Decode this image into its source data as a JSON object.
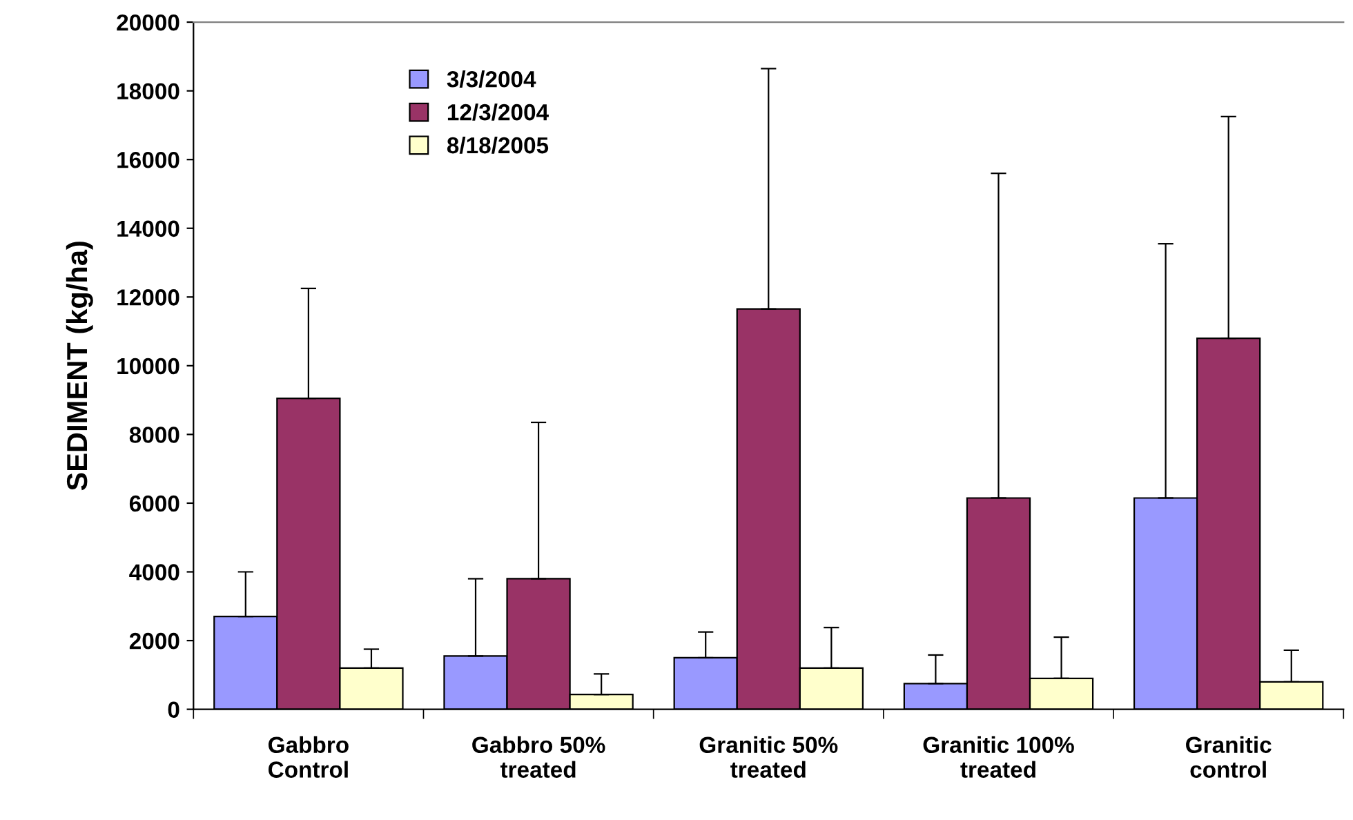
{
  "chart_data": {
    "type": "bar",
    "ylabel": "SEDIMENT (kg/ha)",
    "categories": [
      "Gabbro\nControl",
      "Gabbro 50%\ntreated",
      "Granitic 50%\ntreated",
      "Granitic 100%\ntreated",
      "Granitic\ncontrol"
    ],
    "series": [
      {
        "name": "3/3/2004",
        "color": "#9999ff",
        "values": [
          2700,
          1550,
          1500,
          750,
          6150
        ],
        "errors": [
          [
            2700,
            4000
          ],
          [
            1550,
            3800
          ],
          [
            1500,
            2250
          ],
          [
            750,
            1580
          ],
          [
            6150,
            13550
          ]
        ]
      },
      {
        "name": "12/3/2004",
        "color": "#993366",
        "values": [
          9050,
          3800,
          11650,
          6150,
          10800
        ],
        "errors": [
          [
            9050,
            12250
          ],
          [
            3800,
            8350
          ],
          [
            11650,
            18650
          ],
          [
            6150,
            15600
          ],
          [
            10800,
            17250
          ]
        ]
      },
      {
        "name": "8/18/2005",
        "color": "#ffffcc",
        "values": [
          1200,
          430,
          1200,
          900,
          800
        ],
        "errors": [
          [
            1200,
            1750
          ],
          [
            430,
            1030
          ],
          [
            1200,
            2380
          ],
          [
            900,
            2100
          ],
          [
            800,
            1720
          ]
        ]
      }
    ],
    "ylim": [
      0,
      20000
    ],
    "yticks": [
      0,
      2000,
      4000,
      6000,
      8000,
      10000,
      12000,
      14000,
      16000,
      18000,
      20000
    ],
    "grid": false,
    "legend": "top left"
  }
}
